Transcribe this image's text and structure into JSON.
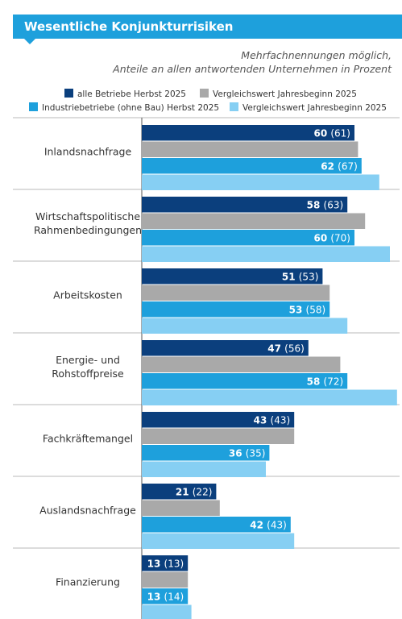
{
  "title": "Wesentliche Konjunkturrisiken",
  "subtitle_line1": "Mehrfachnennungen möglich,",
  "subtitle_line2": "Anteile an allen antwortenden Unternehmen in Prozent",
  "colors": {
    "title_bg": "#1ea0dc",
    "alle_herbst": "#0b3f7d",
    "alle_jahresbeginn": "#a9a9a9",
    "industrie_herbst": "#1ea0dc",
    "industrie_jahresbeginn": "#86cff3"
  },
  "legend": [
    {
      "label": "alle Betriebe Herbst 2025",
      "color": "#0b3f7d"
    },
    {
      "label": "Vergleichswert Jahresbeginn 2025",
      "color": "#a9a9a9"
    },
    {
      "label": "Industriebetriebe (ohne Bau) Herbst 2025",
      "color": "#1ea0dc"
    },
    {
      "label": "Vergleichswert Jahresbeginn 2025",
      "color": "#86cff3"
    }
  ],
  "chart_data": {
    "type": "bar",
    "orientation": "horizontal",
    "categories": [
      "Inlandsnachfrage",
      "Wirtschaftspolitische Rahmenbedingungen",
      "Arbeitskosten",
      "Energie- und Rohstoffpreise",
      "Fachkräftemangel",
      "Auslandsnachfrage",
      "Finanzierung"
    ],
    "category_lines": [
      [
        "Inlandsnachfrage"
      ],
      [
        "Wirtschaftspolitische",
        "Rahmenbedingungen"
      ],
      [
        "Arbeitskosten"
      ],
      [
        "Energie- und",
        "Rohstoffpreise"
      ],
      [
        "Fachkräftemangel"
      ],
      [
        "Auslandsnachfrage"
      ],
      [
        "Finanzierung"
      ]
    ],
    "series": [
      {
        "name": "alle Betriebe Herbst 2025",
        "values": [
          60,
          58,
          51,
          47,
          43,
          21,
          13
        ]
      },
      {
        "name": "Vergleichswert Jahresbeginn 2025",
        "values": [
          61,
          63,
          53,
          56,
          43,
          22,
          13
        ]
      },
      {
        "name": "Industriebetriebe (ohne Bau) Herbst 2025",
        "values": [
          62,
          60,
          53,
          58,
          36,
          42,
          13
        ]
      },
      {
        "name": "Vergleichswert Jahresbeginn 2025",
        "values": [
          67,
          70,
          58,
          72,
          35,
          43,
          14
        ]
      }
    ],
    "xlim": [
      0,
      72
    ]
  }
}
